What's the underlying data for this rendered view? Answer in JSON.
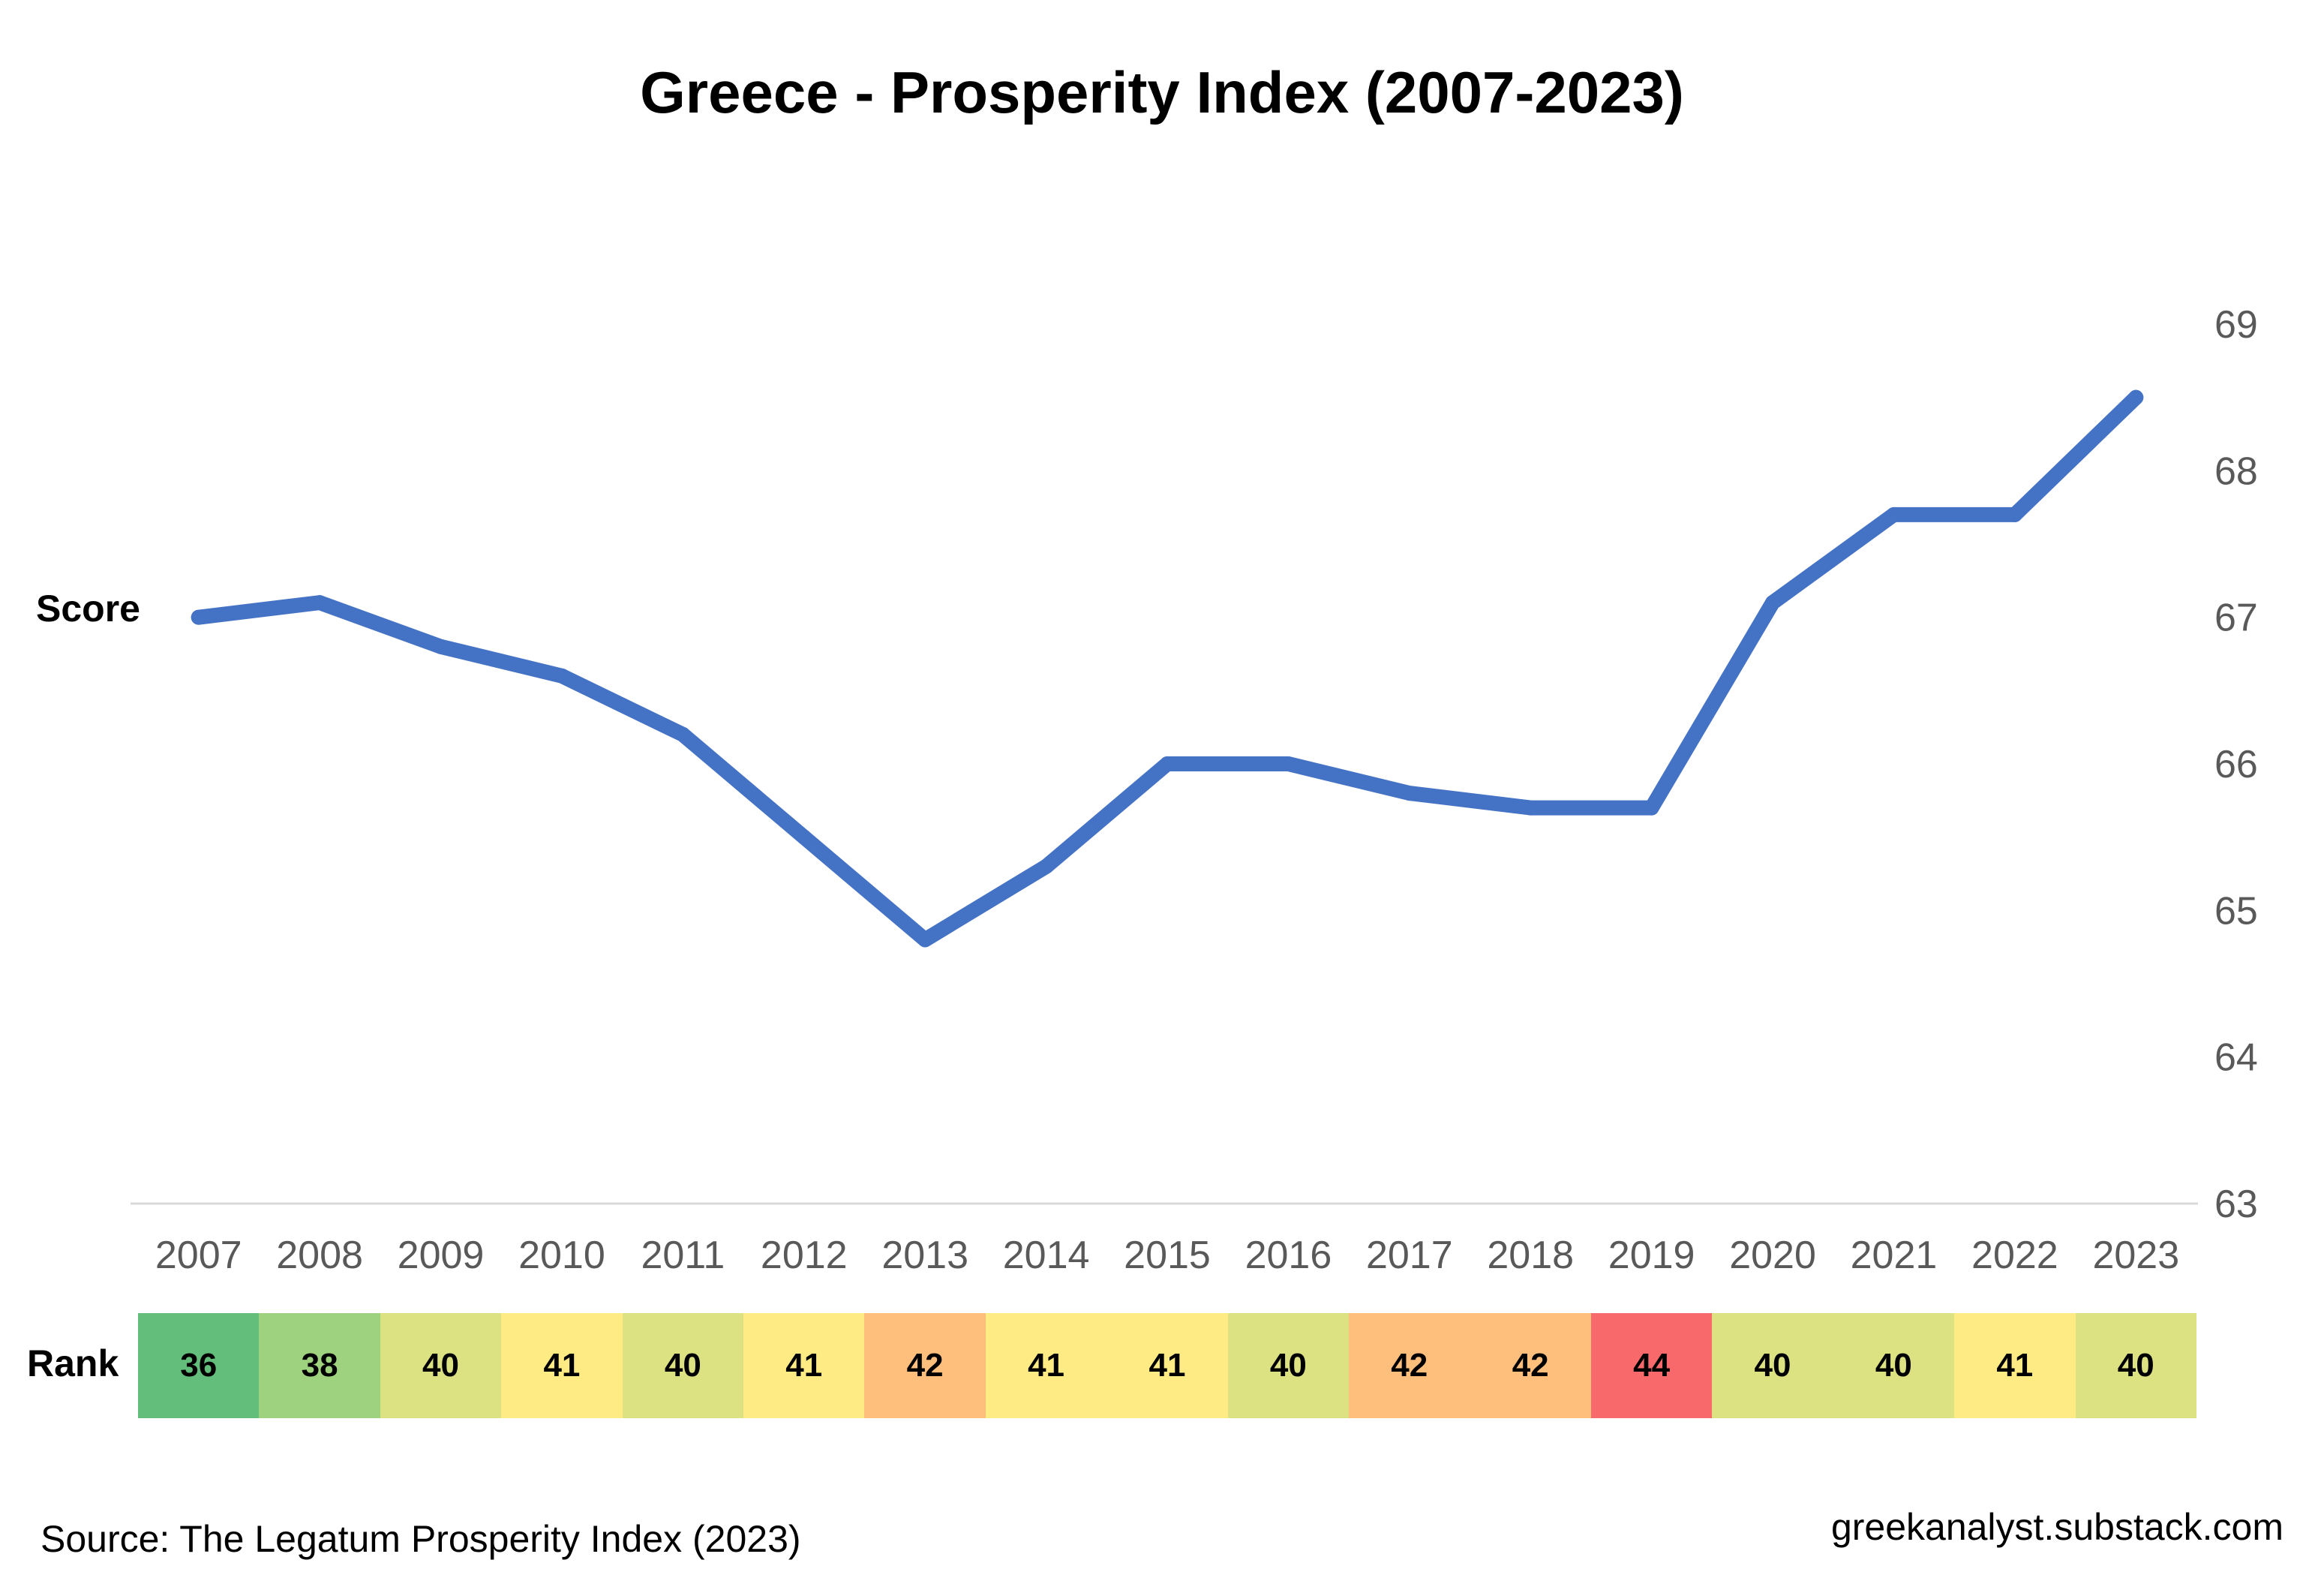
{
  "chart_data": {
    "type": "line",
    "title": "Greece - Prosperity Index (2007-2023)",
    "ylabel": "Score",
    "ylim": [
      63,
      69
    ],
    "yticks": [
      63,
      64,
      65,
      66,
      67,
      68,
      69
    ],
    "y_axis_side": "right",
    "grid": false,
    "categories": [
      "2007",
      "2008",
      "2009",
      "2010",
      "2011",
      "2012",
      "2013",
      "2014",
      "2015",
      "2016",
      "2017",
      "2018",
      "2019",
      "2020",
      "2021",
      "2022",
      "2023"
    ],
    "series": [
      {
        "values": [
          67.0,
          67.1,
          66.8,
          66.6,
          66.2,
          65.5,
          64.8,
          65.3,
          66.0,
          66.0,
          65.8,
          65.7,
          65.7,
          67.1,
          67.7,
          67.7,
          68.5
        ],
        "color": "#4472c4"
      }
    ],
    "rank": {
      "label": "Rank",
      "values": [
        36,
        38,
        40,
        41,
        40,
        41,
        42,
        41,
        41,
        40,
        42,
        42,
        44,
        40,
        40,
        41,
        40
      ],
      "colors": [
        "#63be7b",
        "#9fd27e",
        "#dce182",
        "#ffeb84",
        "#dce182",
        "#ffeb84",
        "#fdbf7b",
        "#ffeb84",
        "#ffeb84",
        "#dce182",
        "#fdbf7b",
        "#fdbf7b",
        "#f8696b",
        "#dce182",
        "#dce182",
        "#ffeb84",
        "#dce182"
      ]
    }
  },
  "footer": {
    "source": "Source: The Legatum Prosperity Index (2023)",
    "site": "greekanalyst.substack.com"
  }
}
